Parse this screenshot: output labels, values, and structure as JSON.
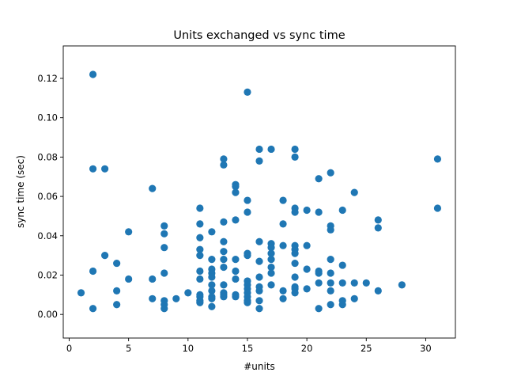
{
  "chart_data": {
    "type": "scatter",
    "title": "Units exchanged vs sync time",
    "xlabel": "#units",
    "ylabel": "sync time (sec)",
    "xlim": [
      -0.5,
      32.5
    ],
    "ylim": [
      -0.012,
      0.1365
    ],
    "xticks": [
      0,
      5,
      10,
      15,
      20,
      25,
      30
    ],
    "xtick_labels": [
      "0",
      "5",
      "10",
      "15",
      "20",
      "25",
      "30"
    ],
    "yticks": [
      0.0,
      0.02,
      0.04,
      0.06,
      0.08,
      0.1,
      0.12
    ],
    "ytick_labels": [
      "0.00",
      "0.02",
      "0.04",
      "0.06",
      "0.08",
      "0.10",
      "0.12"
    ],
    "grid": false,
    "marker_color": "#1f77b4",
    "x": [
      1,
      2,
      2,
      2,
      2,
      3,
      3,
      4,
      4,
      4,
      5,
      5,
      7,
      7,
      7,
      8,
      8,
      8,
      8,
      8,
      8,
      8,
      9,
      10,
      11,
      11,
      11,
      11,
      11,
      11,
      11,
      11,
      11,
      11,
      11,
      12,
      12,
      12,
      12,
      12,
      12,
      12,
      12,
      12,
      12,
      13,
      13,
      13,
      13,
      13,
      13,
      13,
      13,
      13,
      13,
      13,
      14,
      14,
      14,
      14,
      14,
      14,
      14,
      14,
      14,
      15,
      15,
      15,
      15,
      15,
      15,
      15,
      15,
      15,
      15,
      15,
      15,
      16,
      16,
      16,
      16,
      16,
      16,
      16,
      16,
      16,
      17,
      17,
      17,
      17,
      17,
      17,
      17,
      17,
      18,
      18,
      18,
      18,
      18,
      19,
      19,
      19,
      19,
      19,
      19,
      19,
      19,
      19,
      19,
      19,
      19,
      20,
      20,
      20,
      20,
      21,
      21,
      21,
      21,
      21,
      21,
      22,
      22,
      22,
      22,
      22,
      22,
      22,
      22,
      23,
      23,
      23,
      23,
      23,
      24,
      24,
      24,
      25,
      26,
      26,
      26,
      28,
      31,
      31
    ],
    "y": [
      0.011,
      0.122,
      0.074,
      0.022,
      0.003,
      0.074,
      0.03,
      0.026,
      0.012,
      0.005,
      0.042,
      0.018,
      0.064,
      0.018,
      0.008,
      0.045,
      0.041,
      0.034,
      0.021,
      0.007,
      0.005,
      0.003,
      0.008,
      0.011,
      0.054,
      0.046,
      0.039,
      0.033,
      0.03,
      0.022,
      0.018,
      0.01,
      0.009,
      0.007,
      0.006,
      0.042,
      0.028,
      0.023,
      0.021,
      0.019,
      0.015,
      0.012,
      0.009,
      0.008,
      0.004,
      0.079,
      0.076,
      0.047,
      0.037,
      0.032,
      0.028,
      0.024,
      0.015,
      0.011,
      0.01,
      0.009,
      0.066,
      0.065,
      0.062,
      0.048,
      0.028,
      0.022,
      0.018,
      0.01,
      0.009,
      0.113,
      0.058,
      0.052,
      0.031,
      0.03,
      0.017,
      0.015,
      0.013,
      0.011,
      0.009,
      0.007,
      0.006,
      0.084,
      0.078,
      0.037,
      0.027,
      0.019,
      0.014,
      0.012,
      0.007,
      0.003,
      0.084,
      0.036,
      0.034,
      0.031,
      0.028,
      0.024,
      0.021,
      0.015,
      0.058,
      0.046,
      0.035,
      0.012,
      0.008,
      0.084,
      0.08,
      0.054,
      0.052,
      0.035,
      0.033,
      0.031,
      0.026,
      0.019,
      0.014,
      0.013,
      0.011,
      0.053,
      0.035,
      0.023,
      0.013,
      0.069,
      0.052,
      0.022,
      0.021,
      0.016,
      0.003,
      0.072,
      0.045,
      0.043,
      0.028,
      0.021,
      0.016,
      0.012,
      0.005,
      0.053,
      0.025,
      0.016,
      0.007,
      0.005,
      0.062,
      0.016,
      0.008,
      0.016,
      0.048,
      0.044,
      0.012,
      0.015,
      0.079,
      0.054
    ]
  }
}
